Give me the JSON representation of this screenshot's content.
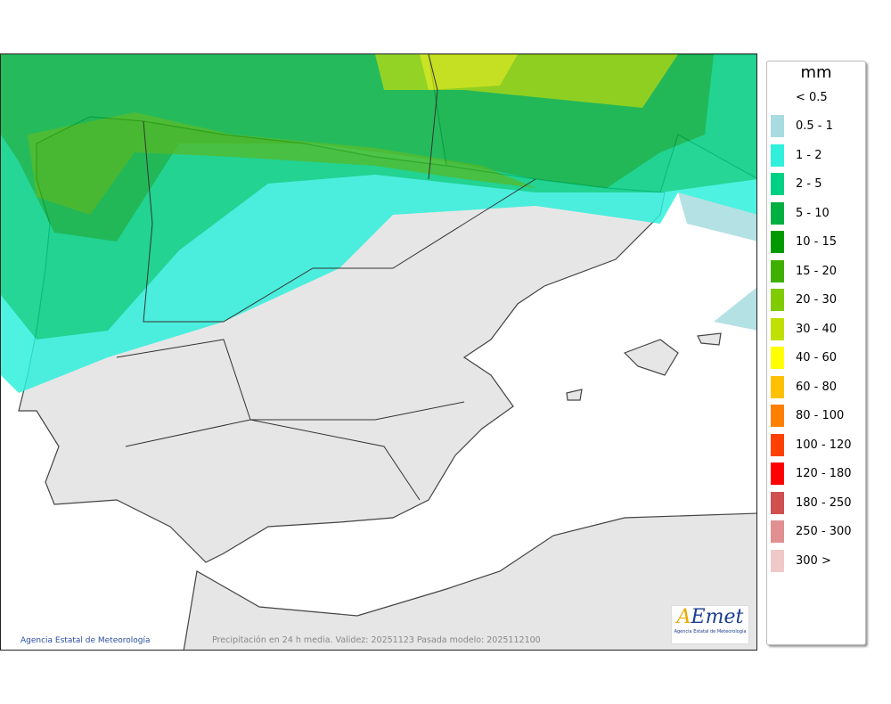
{
  "map": {
    "credit": "Agencia Estatal de Meteorología",
    "caption": "Precipitación en 24 h media. Validez: 20251123 Pasada modelo: 2025112100",
    "logo": {
      "word": "AEmet",
      "subtitle": "Agencia Estatal de Meteorología"
    }
  },
  "legend": {
    "title": "mm",
    "items": [
      {
        "label": "< 0.5",
        "color": ""
      },
      {
        "label": "0.5 - 1",
        "color": "#a8dce0"
      },
      {
        "label": "1 - 2",
        "color": "#30f0dc"
      },
      {
        "label": "2 - 5",
        "color": "#00d084"
      },
      {
        "label": "5 - 10",
        "color": "#00b040"
      },
      {
        "label": "10 - 15",
        "color": "#009a00"
      },
      {
        "label": "15 - 20",
        "color": "#40b000"
      },
      {
        "label": "20 - 30",
        "color": "#80cc00"
      },
      {
        "label": "30 - 40",
        "color": "#c0e000"
      },
      {
        "label": "40 - 60",
        "color": "#ffff00"
      },
      {
        "label": "60 - 80",
        "color": "#ffc000"
      },
      {
        "label": "80 - 100",
        "color": "#ff8000"
      },
      {
        "label": "100 - 120",
        "color": "#ff4000"
      },
      {
        "label": "120 - 180",
        "color": "#ff0000"
      },
      {
        "label": "180 - 250",
        "color": "#d05050"
      },
      {
        "label": "250 - 300",
        "color": "#e09090"
      },
      {
        "label": "300 >",
        "color": "#f0c8c8"
      }
    ]
  }
}
